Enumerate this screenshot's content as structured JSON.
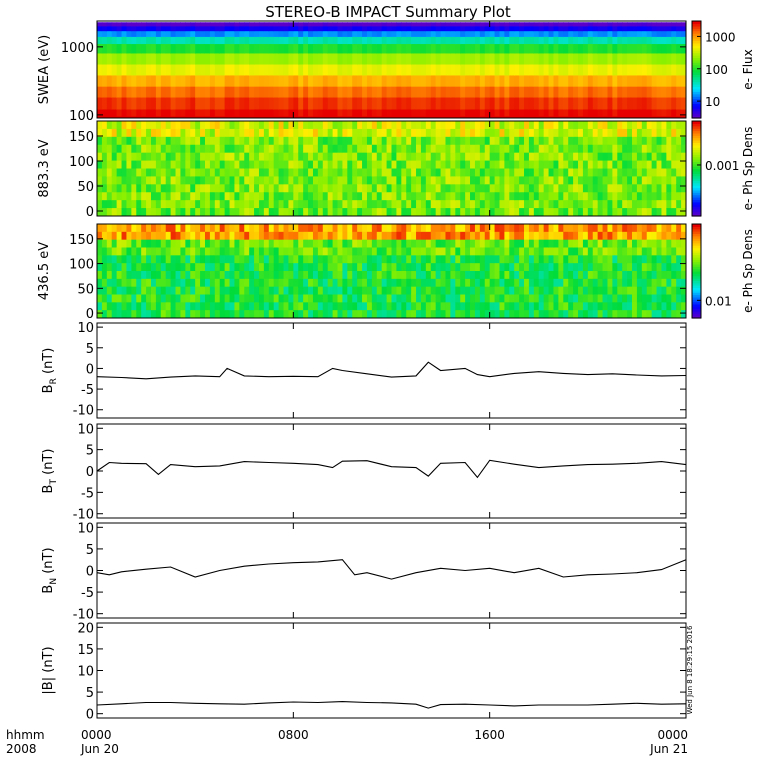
{
  "page": {
    "title": "STEREO-B IMPACT Summary Plot"
  },
  "stamp": "Wed Jun 8 18:29:15 2016",
  "time_axis": {
    "start_hours": 0,
    "end_hours": 24,
    "hhmm_label": "hhmm",
    "year_label": "2008",
    "ticks": [
      {
        "h": 0,
        "label": "0000",
        "sub": "Jun 20"
      },
      {
        "h": 8,
        "label": "0800",
        "sub": ""
      },
      {
        "h": 16,
        "label": "1600",
        "sub": ""
      },
      {
        "h": 24,
        "label": "0000",
        "sub": "Jun 21"
      }
    ]
  },
  "chart_data": [
    {
      "type": "heatmap",
      "ylabel": "SWEA (eV)",
      "yscale": "log",
      "ylim": [
        90,
        2400
      ],
      "yticks": [
        {
          "v": 100,
          "label": "100"
        },
        {
          "v": 1000,
          "label": "1000"
        }
      ],
      "colorbar": {
        "label": "e- Flux",
        "scale": "log",
        "range": [
          3,
          3000
        ],
        "ticks": [
          {
            "v": 10,
            "label": "10"
          },
          {
            "v": 100,
            "label": "100"
          },
          {
            "v": 1000,
            "label": "1000"
          }
        ]
      },
      "bands": [
        {
          "y": 2300,
          "flux": 3
        },
        {
          "y": 2000,
          "flux": 6
        },
        {
          "y": 1700,
          "flux": 15
        },
        {
          "y": 1400,
          "flux": 40
        },
        {
          "y": 1100,
          "flux": 100
        },
        {
          "y": 800,
          "flux": 250
        },
        {
          "y": 550,
          "flux": 450
        },
        {
          "y": 380,
          "flux": 900
        },
        {
          "y": 260,
          "flux": 1500
        },
        {
          "y": 180,
          "flux": 2200
        },
        {
          "y": 120,
          "flux": 3000
        },
        {
          "y": 95,
          "flux": 3000
        }
      ]
    },
    {
      "type": "heatmap",
      "ylabel": "883.3 eV",
      "ylim": [
        -10,
        180
      ],
      "yticks": [
        {
          "v": 0,
          "label": "0"
        },
        {
          "v": 50,
          "label": "50"
        },
        {
          "v": 100,
          "label": "100"
        },
        {
          "v": 150,
          "label": "150"
        }
      ],
      "colorbar": {
        "label": "e- Ph Sp Dens",
        "scale": "log",
        "range": [
          0.0002,
          0.004
        ],
        "ticks": [
          {
            "v": 0.001,
            "label": "0.001"
          }
        ]
      },
      "level": 0.6
    },
    {
      "type": "heatmap",
      "ylabel": "436.5 eV",
      "ylim": [
        -10,
        180
      ],
      "yticks": [
        {
          "v": 0,
          "label": "0"
        },
        {
          "v": 50,
          "label": "50"
        },
        {
          "v": 100,
          "label": "100"
        },
        {
          "v": 150,
          "label": "150"
        }
      ],
      "colorbar": {
        "label": "e- Ph Sp Dens",
        "scale": "log",
        "range": [
          0.005,
          0.2
        ],
        "ticks": [
          {
            "v": 0.01,
            "label": "0.01"
          }
        ]
      },
      "level_high_pitch": 0.85,
      "level_low_pitch": 0.5
    },
    {
      "type": "line",
      "ylabel": "B",
      "ysub": "R",
      "yunit": " (nT)",
      "ylim": [
        -12,
        11
      ],
      "yticks": [
        {
          "v": -10,
          "label": "-10"
        },
        {
          "v": -5,
          "label": "-5"
        },
        {
          "v": 0,
          "label": "0"
        },
        {
          "v": 5,
          "label": "5"
        },
        {
          "v": 10,
          "label": "10"
        }
      ],
      "x": [
        0,
        1,
        2,
        3,
        4,
        5,
        5.3,
        6,
        7,
        8,
        9,
        9.6,
        10,
        11,
        12,
        13,
        13.5,
        14,
        15,
        15.5,
        16,
        17,
        18,
        19,
        20,
        21,
        22,
        23,
        24
      ],
      "values": [
        -2,
        -2.2,
        -2.5,
        -2.1,
        -1.8,
        -2,
        0,
        -1.8,
        -2,
        -1.9,
        -2,
        0,
        -0.5,
        -1.3,
        -2.1,
        -1.8,
        1.5,
        -0.5,
        0,
        -1.5,
        -2,
        -1.2,
        -0.8,
        -1.2,
        -1.5,
        -1.3,
        -1.6,
        -1.8,
        -1.7
      ]
    },
    {
      "type": "line",
      "ylabel": "B",
      "ysub": "T",
      "yunit": " (nT)",
      "ylim": [
        -11,
        11
      ],
      "yticks": [
        {
          "v": -10,
          "label": "-10"
        },
        {
          "v": -5,
          "label": "-5"
        },
        {
          "v": 0,
          "label": "0"
        },
        {
          "v": 5,
          "label": "5"
        },
        {
          "v": 10,
          "label": "10"
        }
      ],
      "x": [
        0,
        0.5,
        1,
        2,
        2.5,
        3,
        4,
        5,
        6,
        7,
        8,
        9,
        9.6,
        10,
        11,
        12,
        13,
        13.5,
        14,
        15,
        15.5,
        16,
        17,
        18,
        19,
        20,
        21,
        22,
        23,
        24
      ],
      "values": [
        0,
        2,
        1.8,
        1.7,
        -0.8,
        1.5,
        1,
        1.2,
        2.2,
        2,
        1.8,
        1.5,
        0.8,
        2.3,
        2.4,
        1,
        0.8,
        -1.2,
        1.8,
        2,
        -1.5,
        2.5,
        1.6,
        0.8,
        1.2,
        1.5,
        1.6,
        1.8,
        2.2,
        1.5
      ]
    },
    {
      "type": "line",
      "ylabel": "B",
      "ysub": "N",
      "yunit": " (nT)",
      "ylim": [
        -11,
        11
      ],
      "yticks": [
        {
          "v": -10,
          "label": "-10"
        },
        {
          "v": -5,
          "label": "-5"
        },
        {
          "v": 0,
          "label": "0"
        },
        {
          "v": 5,
          "label": "5"
        },
        {
          "v": 10,
          "label": "10"
        }
      ],
      "x": [
        0,
        0.5,
        1,
        2,
        3,
        4,
        5,
        6,
        7,
        8,
        9,
        10,
        10.5,
        11,
        12,
        13,
        14,
        15,
        16,
        17,
        18,
        19,
        20,
        21,
        22,
        23,
        24
      ],
      "values": [
        -0.5,
        -1,
        -0.3,
        0.3,
        0.8,
        -1.5,
        0,
        1,
        1.5,
        1.8,
        2,
        2.5,
        -1,
        -0.5,
        -2,
        -0.5,
        0.5,
        0,
        0.5,
        -0.5,
        0.5,
        -1.5,
        -1,
        -0.8,
        -0.5,
        0.2,
        2.5
      ]
    },
    {
      "type": "line",
      "ylabel": "|B|",
      "yunit": " (nT)",
      "ylim": [
        -1,
        21
      ],
      "yticks": [
        {
          "v": 0,
          "label": "0"
        },
        {
          "v": 5,
          "label": "5"
        },
        {
          "v": 10,
          "label": "10"
        },
        {
          "v": 15,
          "label": "15"
        },
        {
          "v": 20,
          "label": "20"
        }
      ],
      "x": [
        0,
        1,
        2,
        3,
        4,
        5,
        6,
        7,
        8,
        9,
        10,
        11,
        12,
        13,
        13.5,
        14,
        15,
        16,
        17,
        18,
        19,
        20,
        21,
        22,
        23,
        24
      ],
      "values": [
        2,
        2.3,
        2.6,
        2.6,
        2.4,
        2.3,
        2.2,
        2.5,
        2.7,
        2.6,
        2.8,
        2.6,
        2.5,
        2.2,
        1.3,
        2.1,
        2.2,
        2,
        1.8,
        2,
        2,
        2,
        2.2,
        2.4,
        2.2,
        2.3
      ]
    }
  ]
}
